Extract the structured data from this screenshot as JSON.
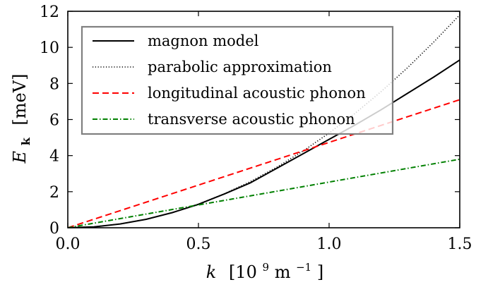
{
  "chart_data": {
    "type": "line",
    "xlabel": {
      "var": "k",
      "unit_open": "[10",
      "unit_exp": "9",
      "unit_close": " m",
      "unit_exp2": "−1",
      "unit_end": "]"
    },
    "ylabel": {
      "var": "E",
      "sub": "k",
      "unit": "[meV]"
    },
    "xlim": [
      0,
      1.5
    ],
    "ylim": [
      0,
      12
    ],
    "xticks": [
      "0.0",
      "0.5",
      "1.0",
      "1.5"
    ],
    "xtick_values": [
      0,
      0.5,
      1.0,
      1.5
    ],
    "yticks": [
      "0",
      "2",
      "4",
      "6",
      "8",
      "10",
      "12"
    ],
    "ytick_values": [
      0,
      2,
      4,
      6,
      8,
      10,
      12
    ],
    "legend_position": "upper-left",
    "grid": false,
    "series": [
      {
        "name": "magnon model",
        "color": "#000000",
        "style": "solid",
        "x": [
          0,
          0.1,
          0.2,
          0.3,
          0.4,
          0.5,
          0.6,
          0.7,
          0.8,
          0.9,
          1.0,
          1.1,
          1.2,
          1.3,
          1.4,
          1.5
        ],
        "y": [
          0,
          0.05,
          0.21,
          0.47,
          0.84,
          1.3,
          1.88,
          2.5,
          3.3,
          4.1,
          4.9,
          5.7,
          6.55,
          7.45,
          8.35,
          9.3
        ]
      },
      {
        "name": "parabolic approximation",
        "color": "#000000",
        "style": "dotted",
        "x": [
          0,
          0.1,
          0.2,
          0.3,
          0.4,
          0.5,
          0.6,
          0.7,
          0.8,
          0.9,
          1.0,
          1.1,
          1.2,
          1.3,
          1.4,
          1.5
        ],
        "y": [
          0,
          0.053,
          0.21,
          0.47,
          0.84,
          1.31,
          1.89,
          2.57,
          3.36,
          4.25,
          5.25,
          6.35,
          7.56,
          8.87,
          10.29,
          11.8
        ]
      },
      {
        "name": "longitudinal acoustic phonon",
        "color": "#ff0000",
        "style": "dashed",
        "x": [
          0,
          1.5
        ],
        "y": [
          0,
          7.1
        ]
      },
      {
        "name": "transverse acoustic phonon",
        "color": "#008000",
        "style": "dashdot",
        "x": [
          0,
          1.5
        ],
        "y": [
          0,
          3.8
        ]
      }
    ]
  }
}
